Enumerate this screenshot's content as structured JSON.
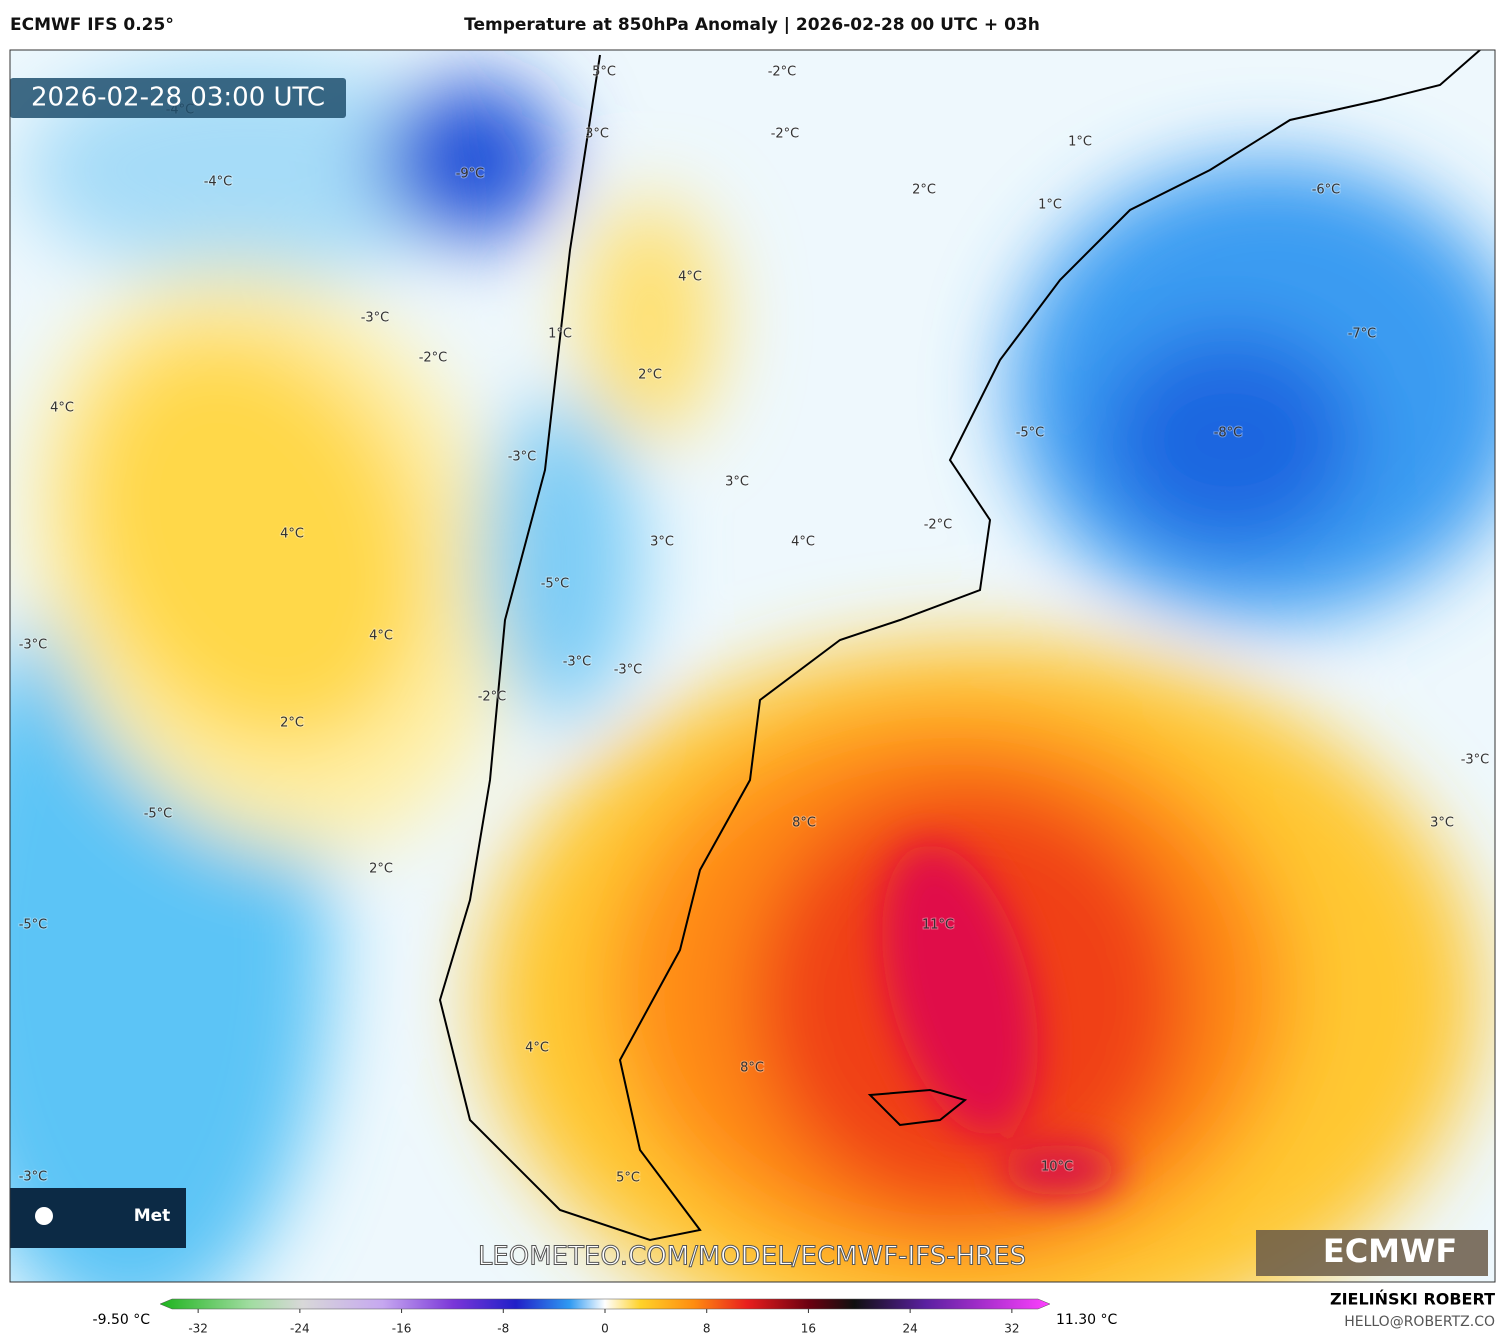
{
  "header": {
    "left": "ECMWF IFS 0.25°",
    "title": "Temperature at 850hPa Anomaly | 2026-02-28 00 UTC + 03h"
  },
  "timestamp": "2026-02-28 03:00 UTC",
  "contour_labels": [
    "5°C",
    "-2°C",
    "-4°C",
    "3°C",
    "-2°C",
    "-9°C",
    "-4°C",
    "1°C",
    "2°C",
    "1°C",
    "-6°C",
    "4°C",
    "-3°C",
    "1°C",
    "-2°C",
    "-7°C",
    "2°C",
    "4°C",
    "-8°C",
    "-5°C",
    "-3°C",
    "3°C",
    "4°C",
    "-2°C",
    "3°C",
    "4°C",
    "-5°C",
    "4°C",
    "-3°C",
    "-3°C",
    "-3°C",
    "-2°C",
    "2°C",
    "-3°C",
    "-5°C",
    "8°C",
    "3°C",
    "2°C",
    "11°C",
    "-5°C",
    "4°C",
    "8°C",
    "10°C",
    "-3°C",
    "5°C"
  ],
  "logo_text": "Met",
  "watermark": "LEOMETEO.COM/MODEL/ECMWF-IFS-HRES",
  "brand": "ECMWF",
  "colorbar": {
    "min_label": "-9.50 °C",
    "max_label": "11.30 °C",
    "range": [
      -35,
      35
    ],
    "ticks": [
      -32,
      -24,
      -16,
      -8,
      0,
      8,
      16,
      24,
      32
    ]
  },
  "footer": {
    "author": "ZIELIŃSKI ROBERT",
    "contact": "HELLO@ROBERTZ.CO"
  }
}
